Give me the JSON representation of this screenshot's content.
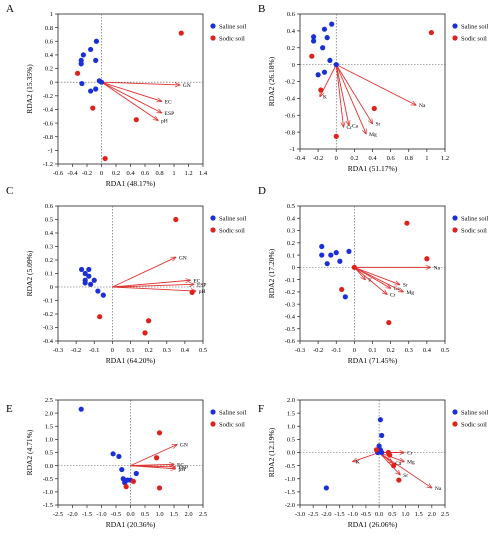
{
  "colors": {
    "saline": "#1a2fd6",
    "sodic": "#e0201b",
    "arrow": "#e03030",
    "axis": "#222222"
  },
  "chart_data": [
    {
      "panel": "A",
      "type": "scatter",
      "xlabel": "RDA1 (48.17%)",
      "ylabel": "RDA2 (15.35%)",
      "xlim": [
        -0.6,
        1.4
      ],
      "ylim": [
        -1.2,
        1.0
      ],
      "xticks": [
        "-0.6",
        "-0.4",
        "-0.2",
        "0",
        "0.2",
        "0.4",
        "0.6",
        "0.8",
        "1",
        "1.2",
        "1.4"
      ],
      "yticks": [
        "-1.2",
        "-1",
        "-0.8",
        "-0.6",
        "-0.4",
        "-0.2",
        "0",
        "0.2",
        "0.4",
        "0.6",
        "0.8",
        "1"
      ],
      "legend": [
        "Saline soil",
        "Sodic soil"
      ],
      "series": [
        {
          "name": "Saline soil",
          "points": [
            [
              -0.07,
              0.6
            ],
            [
              -0.15,
              0.48
            ],
            [
              -0.25,
              0.4
            ],
            [
              -0.28,
              0.32
            ],
            [
              -0.28,
              0.27
            ],
            [
              -0.08,
              0.32
            ],
            [
              -0.27,
              -0.02
            ],
            [
              -0.15,
              -0.13
            ],
            [
              -0.08,
              -0.1
            ],
            [
              -0.03,
              0.02
            ],
            [
              0.0,
              0.0
            ]
          ]
        },
        {
          "name": "Sodic soil",
          "points": [
            [
              -0.33,
              0.13
            ],
            [
              -0.12,
              -0.38
            ],
            [
              0.05,
              -1.12
            ],
            [
              0.48,
              -0.55
            ],
            [
              1.1,
              0.72
            ]
          ]
        }
      ],
      "vectors": [
        {
          "label": "GN",
          "x": 1.08,
          "y": -0.04
        },
        {
          "label": "EC",
          "x": 0.83,
          "y": -0.28
        },
        {
          "label": "ESP",
          "x": 0.83,
          "y": -0.45
        },
        {
          "label": "pH",
          "x": 0.78,
          "y": -0.56
        }
      ]
    },
    {
      "panel": "B",
      "type": "scatter",
      "xlabel": "RDA1 (51.17%)",
      "ylabel": "RDA2 (26.18%)",
      "xlim": [
        -0.4,
        1.2
      ],
      "ylim": [
        -1.0,
        0.6
      ],
      "xticks": [
        "-0.4",
        "-0.2",
        "0",
        "0.2",
        "0.4",
        "0.6",
        "0.8",
        "1",
        "1.2"
      ],
      "yticks": [
        "-1",
        "-0.8",
        "-0.6",
        "-0.4",
        "-0.2",
        "0",
        "0.2",
        "0.4",
        "0.6"
      ],
      "legend": [
        "Saline soil",
        "Sodic soil"
      ],
      "series": [
        {
          "name": "Saline soil",
          "points": [
            [
              -0.05,
              0.48
            ],
            [
              -0.13,
              0.42
            ],
            [
              -0.25,
              0.33
            ],
            [
              -0.25,
              0.28
            ],
            [
              -0.1,
              0.32
            ],
            [
              -0.15,
              0.2
            ],
            [
              -0.2,
              -0.12
            ],
            [
              -0.13,
              -0.09
            ],
            [
              -0.07,
              0.05
            ],
            [
              0.0,
              0.0
            ]
          ]
        },
        {
          "name": "Sodic soil",
          "points": [
            [
              -0.27,
              0.1
            ],
            [
              -0.17,
              -0.3
            ],
            [
              0.0,
              -0.85
            ],
            [
              0.42,
              -0.52
            ],
            [
              1.05,
              0.38
            ]
          ]
        }
      ],
      "vectors": [
        {
          "label": "K",
          "x": -0.18,
          "y": -0.38
        },
        {
          "label": "Ca",
          "x": 0.14,
          "y": -0.72
        },
        {
          "label": "Cr",
          "x": 0.08,
          "y": -0.74
        },
        {
          "label": "Sr",
          "x": 0.4,
          "y": -0.7
        },
        {
          "label": "Mg",
          "x": 0.33,
          "y": -0.82
        },
        {
          "label": "Na",
          "x": 0.88,
          "y": -0.48
        }
      ]
    },
    {
      "panel": "C",
      "type": "scatter",
      "xlabel": "RDA1 (64.20%)",
      "ylabel": "RDA2 (5.09%)",
      "xlim": [
        -0.3,
        0.5
      ],
      "ylim": [
        -0.4,
        0.6
      ],
      "xticks": [
        "-0.3",
        "-0.2",
        "-0.1",
        "0",
        "0.1",
        "0.2",
        "0.3",
        "0.4",
        "0.5"
      ],
      "yticks": [
        "-0.4",
        "-0.3",
        "-0.2",
        "-0.1",
        "0",
        "0.1",
        "0.2",
        "0.3",
        "0.4",
        "0.5",
        "0.6"
      ],
      "legend": [
        "Saline soil",
        "Sodic soil"
      ],
      "series": [
        {
          "name": "Saline soil",
          "points": [
            [
              -0.17,
              0.13
            ],
            [
              -0.15,
              0.1
            ],
            [
              -0.13,
              0.13
            ],
            [
              -0.15,
              0.05
            ],
            [
              -0.13,
              0.08
            ],
            [
              -0.1,
              0.05
            ],
            [
              -0.08,
              -0.03
            ],
            [
              -0.05,
              -0.06
            ],
            [
              -0.12,
              0.02
            ],
            [
              -0.15,
              0.03
            ]
          ]
        },
        {
          "name": "Sodic soil",
          "points": [
            [
              -0.07,
              -0.22
            ],
            [
              0.2,
              -0.25
            ],
            [
              0.18,
              -0.34
            ],
            [
              0.35,
              0.5
            ],
            [
              0.44,
              -0.04
            ]
          ]
        }
      ],
      "vectors": [
        {
          "label": "GN",
          "x": 0.35,
          "y": 0.22
        },
        {
          "label": "EC",
          "x": 0.43,
          "y": 0.05
        },
        {
          "label": "ESP",
          "x": 0.45,
          "y": 0.02
        },
        {
          "label": "pH",
          "x": 0.46,
          "y": -0.03
        }
      ]
    },
    {
      "panel": "D",
      "type": "scatter",
      "xlabel": "RDA1 (71.45%)",
      "ylabel": "RDA2 (17.20%)",
      "xlim": [
        -0.3,
        0.5
      ],
      "ylim": [
        -0.6,
        0.5
      ],
      "xticks": [
        "-0.3",
        "-0.2",
        "-0.1",
        "0",
        "0.1",
        "0.2",
        "0.3",
        "0.4",
        "0.5"
      ],
      "yticks": [
        "-0.6",
        "-0.5",
        "-0.4",
        "-0.3",
        "-0.2",
        "-0.1",
        "0",
        "0.1",
        "0.2",
        "0.3",
        "0.4",
        "0.5"
      ],
      "legend": [
        "Saline soil",
        "Sodic soil"
      ],
      "series": [
        {
          "name": "Saline soil",
          "points": [
            [
              -0.18,
              0.17
            ],
            [
              -0.18,
              0.1
            ],
            [
              -0.13,
              0.1
            ],
            [
              -0.1,
              0.12
            ],
            [
              -0.15,
              0.03
            ],
            [
              -0.08,
              0.05
            ],
            [
              -0.03,
              0.13
            ],
            [
              -0.05,
              -0.24
            ]
          ]
        },
        {
          "name": "Sodic soil",
          "points": [
            [
              -0.07,
              -0.18
            ],
            [
              0.29,
              0.36
            ],
            [
              0.4,
              0.07
            ],
            [
              0.19,
              -0.45
            ],
            [
              0.0,
              0.0
            ]
          ]
        }
      ],
      "vectors": [
        {
          "label": "Na",
          "x": 0.42,
          "y": 0.0
        },
        {
          "label": "K",
          "x": 0.06,
          "y": -0.1
        },
        {
          "label": "Sr",
          "x": 0.25,
          "y": -0.14
        },
        {
          "label": "Ca",
          "x": 0.2,
          "y": -0.17
        },
        {
          "label": "Mg",
          "x": 0.27,
          "y": -0.2
        },
        {
          "label": "Cr",
          "x": 0.18,
          "y": -0.22
        }
      ]
    },
    {
      "panel": "E",
      "type": "scatter",
      "xlabel": "RDA1 (20.36%)",
      "ylabel": "RDA2 (4.71%)",
      "xlim": [
        -2.5,
        2.5
      ],
      "ylim": [
        -1.5,
        2.5
      ],
      "xticks": [
        "-2.5",
        "-2.0",
        "-1.5",
        "-1.0",
        "-0.5",
        "0.0",
        "0.5",
        "1.0",
        "1.5",
        "2.0",
        "2.5"
      ],
      "yticks": [
        "-1.5",
        "-1.0",
        "-0.5",
        "0.0",
        "0.5",
        "1.0",
        "1.5",
        "2.0",
        "2.5"
      ],
      "legend": [
        "Saline soil",
        "Sodic soil"
      ],
      "series": [
        {
          "name": "Saline soil",
          "points": [
            [
              -1.7,
              2.15
            ],
            [
              -0.6,
              0.45
            ],
            [
              -0.4,
              0.35
            ],
            [
              -0.3,
              -0.15
            ],
            [
              -0.25,
              -0.5
            ],
            [
              -0.2,
              -0.65
            ],
            [
              -0.1,
              -0.55
            ],
            [
              0.0,
              -0.55
            ],
            [
              0.2,
              -0.3
            ]
          ]
        },
        {
          "name": "Sodic soil",
          "points": [
            [
              -0.15,
              -0.8
            ],
            [
              0.1,
              -0.6
            ],
            [
              0.9,
              0.3
            ],
            [
              1.0,
              1.25
            ],
            [
              1.0,
              -0.85
            ]
          ]
        }
      ],
      "vectors": [
        {
          "label": "GN",
          "x": 1.6,
          "y": 0.8
        },
        {
          "label": "EC",
          "x": 1.5,
          "y": 0.05
        },
        {
          "label": "ESP",
          "x": 1.55,
          "y": -0.05
        },
        {
          "label": "pH",
          "x": 1.55,
          "y": -0.12
        }
      ]
    },
    {
      "panel": "F",
      "type": "scatter",
      "xlabel": "RDA1 (26.06%)",
      "ylabel": "RDA2 (12.19%)",
      "xlim": [
        -3.0,
        2.5
      ],
      "ylim": [
        -2.0,
        2.0
      ],
      "xticks": [
        "-3.0",
        "-2.5",
        "-2.0",
        "-1.5",
        "-1.0",
        "-0.5",
        "0.0",
        "0.5",
        "1.0",
        "1.5",
        "2.0",
        "2.5"
      ],
      "yticks": [
        "-2.0",
        "-1.5",
        "-1.0",
        "-0.5",
        "0.0",
        "0.5",
        "1.0",
        "1.5",
        "2.0"
      ],
      "legend": [
        "Saline soil",
        "Sodic soil"
      ],
      "series": [
        {
          "name": "Saline soil",
          "points": [
            [
              0.05,
              1.25
            ],
            [
              0.1,
              0.65
            ],
            [
              0.0,
              0.25
            ],
            [
              0.05,
              0.1
            ],
            [
              0.1,
              0.0
            ],
            [
              -0.05,
              0.0
            ],
            [
              -2.0,
              -1.35
            ]
          ]
        },
        {
          "name": "Sodic soil",
          "points": [
            [
              -0.1,
              0.1
            ],
            [
              0.35,
              0.0
            ],
            [
              0.4,
              -0.1
            ],
            [
              0.55,
              -0.5
            ],
            [
              0.75,
              -1.05
            ]
          ]
        }
      ],
      "vectors": [
        {
          "label": "Na",
          "x": 2.0,
          "y": -1.35
        },
        {
          "label": "Sr",
          "x": 0.8,
          "y": -0.85
        },
        {
          "label": "Mg",
          "x": 0.95,
          "y": -0.35
        },
        {
          "label": "Ca",
          "x": 0.5,
          "y": -0.4
        },
        {
          "label": "Cr",
          "x": 0.95,
          "y": 0.0
        },
        {
          "label": "K",
          "x": -1.0,
          "y": -0.35
        }
      ]
    }
  ]
}
